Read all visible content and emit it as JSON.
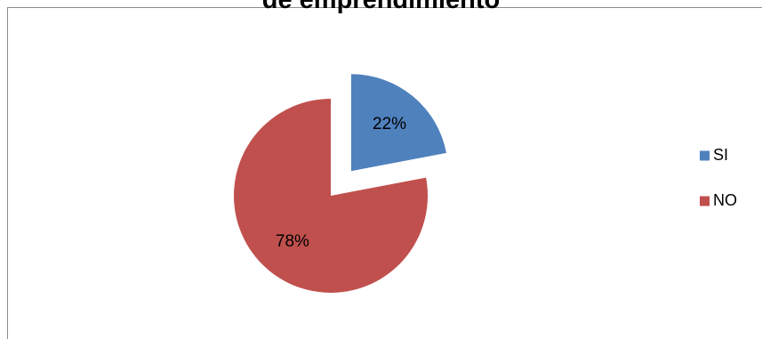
{
  "chart_data": {
    "type": "pie",
    "title": "de emprendimiento",
    "categories": [
      "SI",
      "NO"
    ],
    "values": [
      22,
      78
    ],
    "data_labels": [
      "22%",
      "78%"
    ],
    "colors": [
      "#4f81bd",
      "#c0504d"
    ],
    "exploded": [
      "SI"
    ],
    "legend_placement": "right"
  }
}
